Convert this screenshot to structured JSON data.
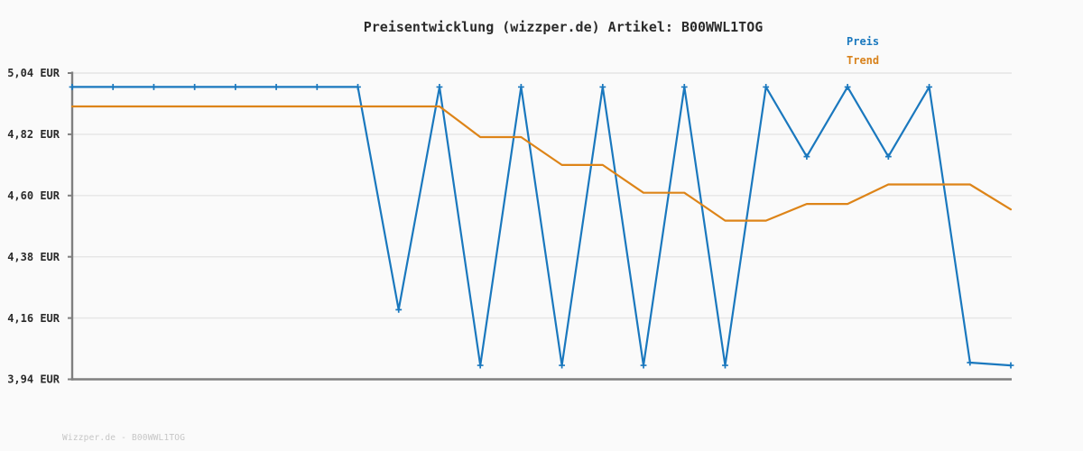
{
  "chart": {
    "title": "Preisentwicklung (wizzper.de) Artikel: B00WWL1TOG",
    "legend": [
      {
        "label": "Preis",
        "color": "#1a78be"
      },
      {
        "label": "Trend",
        "color": "#d8821c"
      }
    ]
  },
  "footer": {
    "watermark": "Wizzper.de - B00WWL1TOG"
  },
  "colors": {
    "background": "#fafafa",
    "gridline": "#e5e5e5",
    "axis_spine": "#7f7f7f",
    "preis_line": "#1a78be",
    "trend_line": "#dd8418",
    "tick_text": "#2b2b2b",
    "watermark_text": "#c6c6c6"
  },
  "chart_data": {
    "type": "line",
    "title": "Preisentwicklung (wizzper.de) Artikel: B00WWL1TOG",
    "xlabel": "",
    "ylabel": "",
    "x": [
      1,
      2,
      3,
      4,
      5,
      6,
      7,
      8,
      9,
      10,
      11,
      12,
      13,
      14,
      15,
      16,
      17,
      18,
      19,
      20,
      21,
      22,
      23,
      24
    ],
    "xticks": [],
    "series": [
      {
        "name": "Preis",
        "color": "#1a78be",
        "markers": true,
        "values": [
          4.99,
          4.99,
          4.99,
          4.99,
          4.99,
          4.99,
          4.99,
          4.99,
          4.19,
          4.99,
          3.99,
          4.99,
          3.99,
          4.99,
          3.99,
          4.99,
          3.99,
          4.99,
          4.74,
          4.99,
          4.74,
          4.99,
          4.0,
          3.99
        ]
      },
      {
        "name": "Trend",
        "color": "#dd8418",
        "markers": false,
        "values": [
          4.92,
          4.92,
          4.92,
          4.92,
          4.92,
          4.92,
          4.92,
          4.92,
          4.92,
          4.92,
          4.81,
          4.81,
          4.71,
          4.71,
          4.61,
          4.61,
          4.51,
          4.51,
          4.57,
          4.57,
          4.64,
          4.64,
          4.64,
          4.55
        ]
      }
    ],
    "ylim": [
      3.94,
      5.04
    ],
    "yticks": [
      {
        "value": 5.04,
        "label": "5,04 EUR"
      },
      {
        "value": 4.82,
        "label": "4,82 EUR"
      },
      {
        "value": 4.6,
        "label": "4,60 EUR"
      },
      {
        "value": 4.38,
        "label": "4,38 EUR"
      },
      {
        "value": 4.16,
        "label": "4,16 EUR"
      },
      {
        "value": 3.94,
        "label": "3,94 EUR"
      }
    ],
    "grid": "horizontal",
    "legend_position": "top-right",
    "currency": "EUR"
  }
}
